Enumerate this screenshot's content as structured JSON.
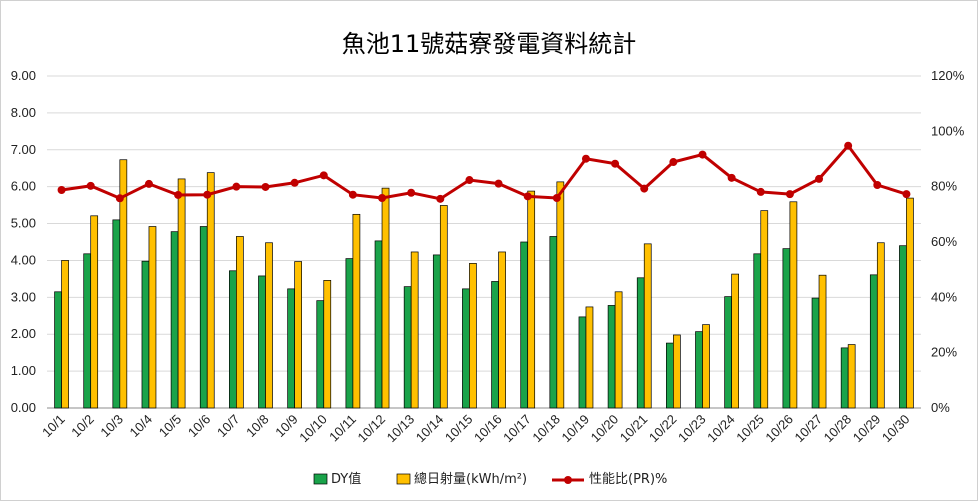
{
  "chart_data": {
    "type": "bar",
    "title": "魚池11號菇寮發電資料統計",
    "categories": [
      "10/1",
      "10/2",
      "10/3",
      "10/4",
      "10/5",
      "10/6",
      "10/7",
      "10/8",
      "10/9",
      "10/10",
      "10/11",
      "10/12",
      "10/13",
      "10/14",
      "10/15",
      "10/16",
      "10/17",
      "10/18",
      "10/19",
      "10/20",
      "10/21",
      "10/22",
      "10/23",
      "10/24",
      "10/25",
      "10/26",
      "10/27",
      "10/28",
      "10/29",
      "10/30"
    ],
    "y_left": {
      "range": [
        0,
        9
      ],
      "ticks": [
        "0.00",
        "1.00",
        "2.00",
        "3.00",
        "4.00",
        "5.00",
        "6.00",
        "7.00",
        "8.00",
        "9.00"
      ]
    },
    "y_right": {
      "range": [
        0,
        120
      ],
      "ticks": [
        "0%",
        "20%",
        "40%",
        "60%",
        "80%",
        "100%",
        "120%"
      ]
    },
    "gridlines": true,
    "legend_position": "bottom",
    "series": [
      {
        "name": "DY值",
        "type": "bar",
        "axis": "left",
        "color": "#1aa34a",
        "values": [
          3.15,
          4.18,
          5.1,
          3.98,
          4.78,
          4.92,
          3.72,
          3.58,
          3.23,
          2.91,
          4.05,
          4.53,
          3.29,
          4.15,
          3.23,
          3.43,
          4.5,
          4.65,
          2.47,
          2.78,
          3.53,
          1.76,
          2.07,
          3.02,
          4.18,
          4.32,
          2.98,
          1.63,
          3.61,
          4.4
        ]
      },
      {
        "name": "總日射量(kWh/m²)",
        "type": "bar",
        "axis": "left",
        "color": "#ffc000",
        "values": [
          4.0,
          5.21,
          6.73,
          4.92,
          6.21,
          6.38,
          4.65,
          4.48,
          3.97,
          3.46,
          5.25,
          5.96,
          4.23,
          5.49,
          3.92,
          4.23,
          5.88,
          6.13,
          2.74,
          3.15,
          4.45,
          1.98,
          2.26,
          3.63,
          5.35,
          5.59,
          3.6,
          1.72,
          4.48,
          5.69
        ]
      },
      {
        "name": "性能比(PR)%",
        "type": "line",
        "axis": "right",
        "color": "#c00000",
        "values": [
          78.8,
          80.3,
          75.8,
          81.0,
          77.0,
          77.1,
          80.0,
          79.9,
          81.4,
          84.1,
          77.1,
          75.9,
          77.8,
          75.6,
          82.4,
          81.1,
          76.5,
          75.9,
          90.1,
          88.3,
          79.3,
          88.9,
          91.6,
          83.2,
          78.1,
          77.3,
          82.8,
          94.8,
          80.6,
          77.3
        ]
      }
    ]
  }
}
